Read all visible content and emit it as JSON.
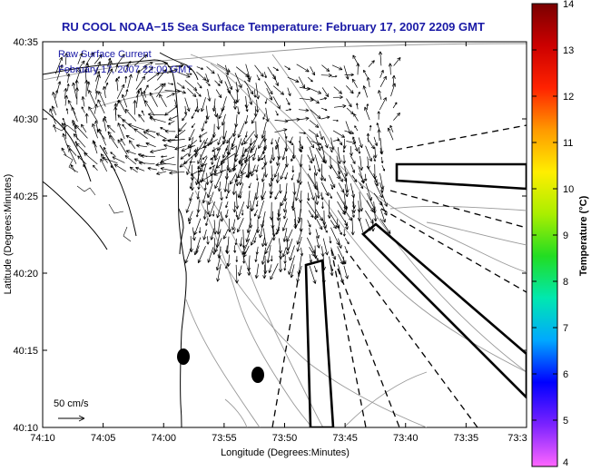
{
  "title": "RU COOL  NOAA−15  Sea Surface Temperature:  February 17, 2007 2209 GMT",
  "legend": {
    "line1": "Raw Surface Current",
    "line2": "February 17, 2007 22:00 GMT"
  },
  "scale_label": "50 cm/s",
  "xlabel": "Longitude (Degrees:Minutes)",
  "ylabel": "Latitude (Degrees:Minutes)",
  "x_ticks": [
    "74:10",
    "74:05",
    "74:00",
    "73:55",
    "73:50",
    "73:45",
    "73:40",
    "73:35",
    "73:3"
  ],
  "y_ticks": [
    "40:35",
    "40:30",
    "40:25",
    "40:20",
    "40:15",
    "40:10"
  ],
  "colorbar": {
    "label": "Temperature (°C)",
    "ticks": [
      "14",
      "13",
      "12",
      "11",
      "10",
      "9",
      "8",
      "7",
      "6",
      "5",
      "4"
    ],
    "min": 4,
    "max": 14,
    "colors": [
      "#ff66ff",
      "#7a22ff",
      "#0000ff",
      "#00a8ff",
      "#00e8b0",
      "#22dd22",
      "#aaee00",
      "#ffee00",
      "#ff9900",
      "#ff2200",
      "#cc0000",
      "#7a0000"
    ]
  },
  "colors": {
    "title": "#1a1aa6",
    "land_outline": "#000000",
    "bathymetry": "#999999",
    "vectors": "#000000"
  }
}
